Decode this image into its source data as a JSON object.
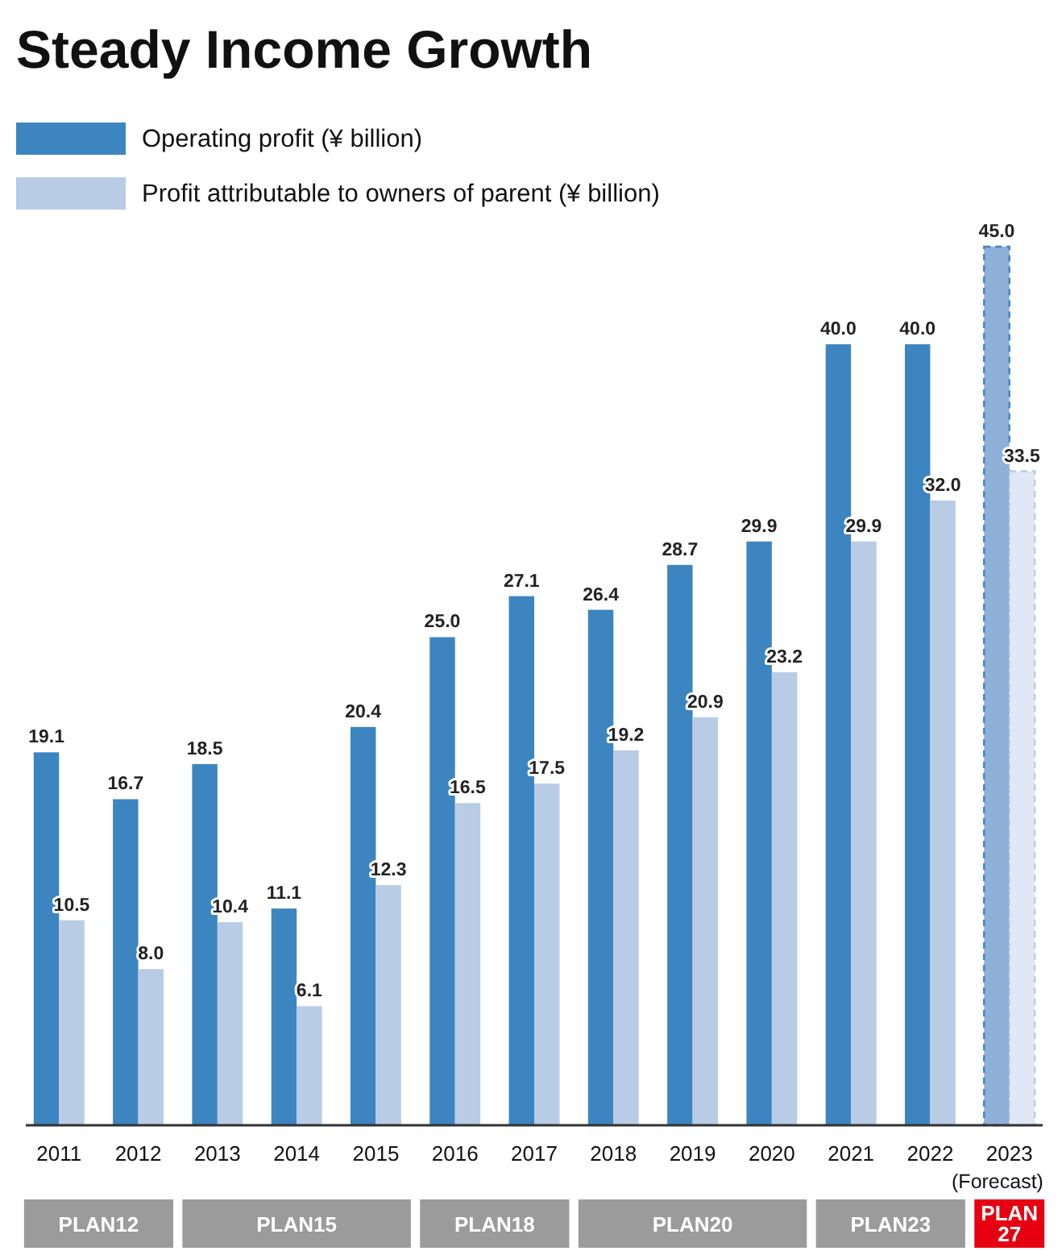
{
  "chart_data": {
    "type": "bar",
    "title": "Steady Income Growth",
    "categories": [
      "2011",
      "2012",
      "2013",
      "2014",
      "2015",
      "2016",
      "2017",
      "2018",
      "2019",
      "2020",
      "2021",
      "2022",
      "2023"
    ],
    "series": [
      {
        "name": "Operating profit (¥ billion)",
        "color": "#3d85c0",
        "colors": [
          "#3d85c0",
          "#3d85c0",
          "#3d85c0",
          "#3d85c0",
          "#3d85c0",
          "#3d85c0",
          "#3d85c0",
          "#3d85c0",
          "#3d85c0",
          "#3d85c0",
          "#3d85c0",
          "#3d85c0",
          "#8fb0d8"
        ],
        "values": [
          19.1,
          16.7,
          18.5,
          11.1,
          20.4,
          25.0,
          27.1,
          26.4,
          28.7,
          29.9,
          40.0,
          40.0,
          45.0
        ],
        "value_labels": [
          "19.1",
          "16.7",
          "18.5",
          "11.1",
          "20.4",
          "25.0",
          "27.1",
          "26.4",
          "28.7",
          "29.9",
          "40.0",
          "40.0",
          "45.0"
        ]
      },
      {
        "name": "Profit attributable to owners of parent (¥ billion)",
        "color": "#b8cce6",
        "colors": [
          "#b8cce6",
          "#b8cce6",
          "#b8cce6",
          "#b8cce6",
          "#b8cce6",
          "#b8cce6",
          "#b8cce6",
          "#b8cce6",
          "#b8cce6",
          "#b8cce6",
          "#b8cce6",
          "#b8cce6",
          "#dfe8f4"
        ],
        "values": [
          10.5,
          8.0,
          10.4,
          6.1,
          12.3,
          16.5,
          17.5,
          19.2,
          20.9,
          23.2,
          29.9,
          32.0,
          33.5
        ],
        "value_labels": [
          "10.5",
          "8.0",
          "10.4",
          "6.1",
          "12.3",
          "16.5",
          "17.5",
          "19.2",
          "20.9",
          "23.2",
          "29.9",
          "32.0",
          "33.5"
        ]
      }
    ],
    "tick_labels": "x",
    "legend": "top left",
    "annotations": [
      "(Forecast)",
      "PLAN12",
      "PLAN15",
      "PLAN18",
      "PLAN20",
      "PLAN23",
      "PLAN 27"
    ]
  }
}
